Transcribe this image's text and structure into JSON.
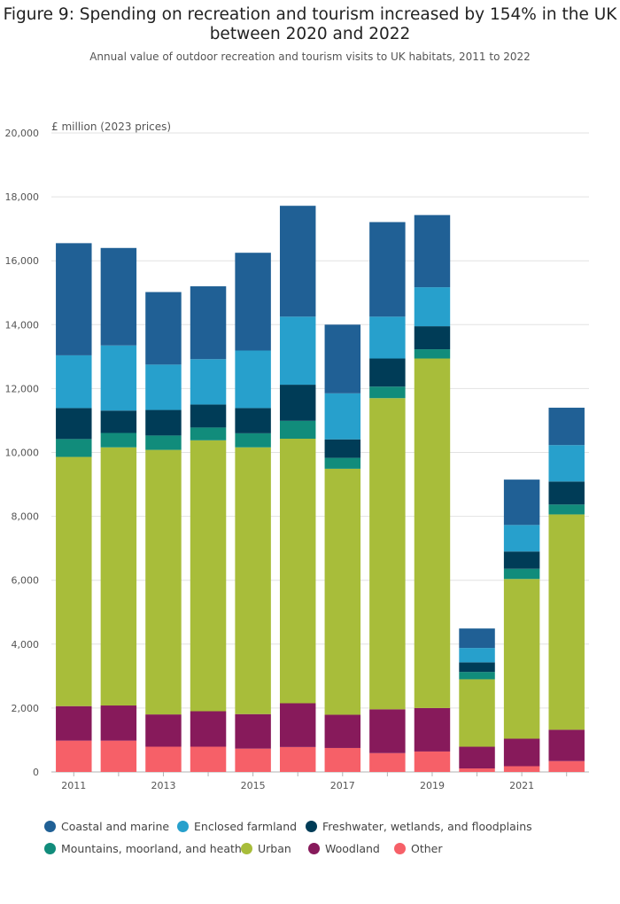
{
  "title": "Figure 9: Spending on recreation and tourism increased by 154% in the UK between 2020 and 2022",
  "subtitle": "Annual value of outdoor recreation and tourism visits to UK habitats, 2011 to 2022",
  "chart_data": {
    "type": "bar",
    "stacked": true,
    "ylabel": "£ million (2023 prices)",
    "ylim": [
      0,
      20000
    ],
    "yticks": [
      0,
      2000,
      4000,
      6000,
      8000,
      10000,
      12000,
      14000,
      16000,
      18000,
      20000
    ],
    "ytick_labels": [
      "0",
      "2,000",
      "4,000",
      "6,000",
      "8,000",
      "10,000",
      "12,000",
      "14,000",
      "16,000",
      "18,000",
      "20,000"
    ],
    "categories": [
      "2011",
      "2012",
      "2013",
      "2014",
      "2015",
      "2016",
      "2017",
      "2018",
      "2019",
      "2020",
      "2021",
      "2022"
    ],
    "xtick_labels": [
      "2011",
      "",
      "2013",
      "",
      "2015",
      "",
      "2017",
      "",
      "2019",
      "",
      "2021",
      ""
    ],
    "grid": true,
    "legend_position": "bottom",
    "series": [
      {
        "name": "Other",
        "color": "#f66068",
        "values": [
          980,
          980,
          790,
          790,
          730,
          780,
          750,
          590,
          640,
          110,
          180,
          340
        ]
      },
      {
        "name": "Woodland",
        "color": "#871a5b",
        "values": [
          1080,
          1100,
          1010,
          1110,
          1080,
          1370,
          1040,
          1370,
          1360,
          680,
          860,
          980
        ]
      },
      {
        "name": "Urban",
        "color": "#a8bd3a",
        "values": [
          7800,
          8080,
          8280,
          8480,
          8350,
          8280,
          7700,
          9740,
          10940,
          2110,
          5000,
          6740
        ]
      },
      {
        "name": "Mountains, moorland, and heath",
        "color": "#118c7b",
        "values": [
          560,
          450,
          450,
          400,
          440,
          560,
          340,
          360,
          290,
          230,
          320,
          310
        ]
      },
      {
        "name": "Freshwater, wetlands, and floodplains",
        "color": "#003c57",
        "values": [
          970,
          700,
          800,
          720,
          790,
          1130,
          580,
          880,
          720,
          300,
          540,
          720
        ]
      },
      {
        "name": "Enclosed farmland",
        "color": "#27a0cc",
        "values": [
          1650,
          2040,
          1420,
          1420,
          1800,
          2130,
          1440,
          1310,
          1220,
          450,
          830,
          1140
        ]
      },
      {
        "name": "Coastal and marine",
        "color": "#206095",
        "values": [
          3510,
          3050,
          2270,
          2280,
          3060,
          3470,
          2150,
          2960,
          2260,
          610,
          1420,
          1170
        ]
      }
    ]
  },
  "legend": {
    "items": [
      {
        "name": "Coastal and marine",
        "color": "#206095"
      },
      {
        "name": "Enclosed farmland",
        "color": "#27a0cc"
      },
      {
        "name": "Freshwater, wetlands, and floodplains",
        "color": "#003c57"
      },
      {
        "name": "Mountains, moorland, and heath",
        "color": "#118c7b"
      },
      {
        "name": "Urban",
        "color": "#a8bd3a"
      },
      {
        "name": "Woodland",
        "color": "#871a5b"
      },
      {
        "name": "Other",
        "color": "#f66068"
      }
    ]
  }
}
